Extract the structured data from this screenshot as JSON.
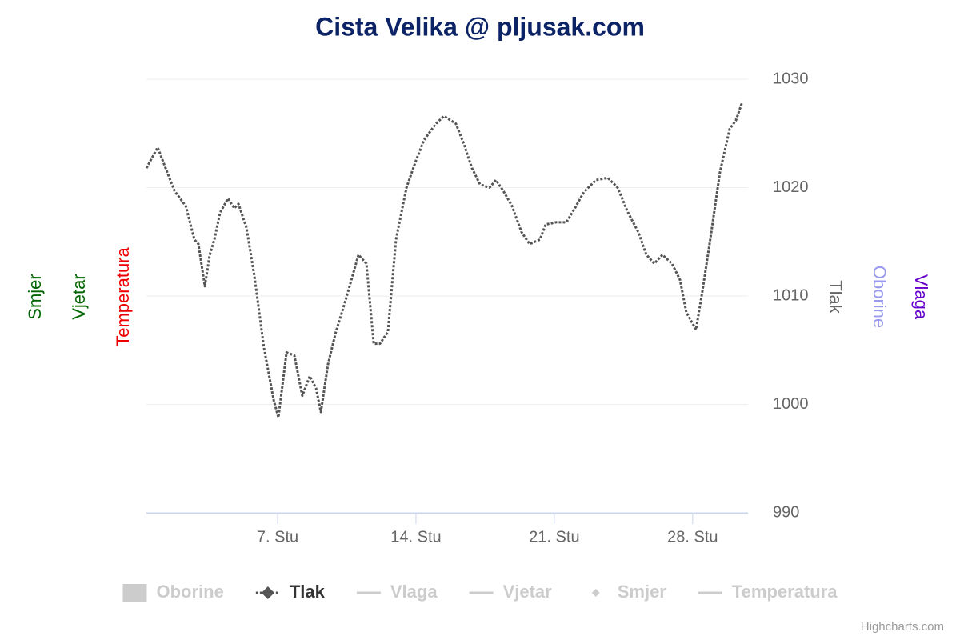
{
  "chart_data": {
    "type": "line",
    "title": "Cista Velika @ pljusak.com",
    "xlim": [
      0.36,
      30.8
    ],
    "xticks": [
      {
        "value": 7,
        "label": "7. Stu"
      },
      {
        "value": 14,
        "label": "14. Stu"
      },
      {
        "value": 21,
        "label": "21. Stu"
      },
      {
        "value": 28,
        "label": "28. Stu"
      }
    ],
    "ylim": [
      990,
      1030
    ],
    "yticks": [
      990,
      1000,
      1010,
      1020,
      1030
    ],
    "grid": true,
    "left_axis_titles": [
      {
        "text": "Smjer",
        "color": "#006400"
      },
      {
        "text": "Vjetar",
        "color": "#006400"
      },
      {
        "text": "Temperatura",
        "color": "#ee0000"
      }
    ],
    "right_axis_titles": [
      {
        "text": "Tlak",
        "color": "#666666"
      },
      {
        "text": "Oborine",
        "color": "#9999ee"
      },
      {
        "text": "Vlaga",
        "color": "#6600cc"
      }
    ],
    "series": [
      {
        "name": "Oborine",
        "visible": false,
        "symbol": "rect"
      },
      {
        "name": "Tlak",
        "visible": true,
        "symbol": "line-diamond",
        "color": "#555555",
        "x": [
          0.36,
          0.93,
          1.33,
          1.78,
          2.35,
          2.79,
          2.99,
          3.32,
          3.56,
          3.8,
          4.09,
          4.49,
          4.81,
          5.02,
          5.42,
          5.83,
          6.31,
          6.8,
          7.04,
          7.45,
          7.85,
          8.25,
          8.62,
          8.94,
          9.19,
          9.55,
          9.95,
          10.44,
          11.09,
          11.49,
          11.86,
          12.18,
          12.58,
          12.99,
          13.52,
          14.0,
          14.41,
          15.01,
          15.42,
          16.02,
          16.43,
          16.83,
          17.24,
          17.72,
          18.05,
          18.45,
          18.86,
          19.34,
          19.75,
          20.27,
          20.56,
          21.08,
          21.61,
          22.01,
          22.5,
          23.11,
          23.71,
          24.2,
          24.73,
          25.25,
          25.66,
          26.06,
          26.47,
          26.95,
          27.36,
          27.68,
          28.17,
          28.49,
          28.89,
          29.38,
          29.87,
          30.19,
          30.51
        ],
        "values": [
          1021.8,
          1023.7,
          1021.8,
          1019.7,
          1018.3,
          1015.2,
          1014.8,
          1010.9,
          1013.8,
          1015.2,
          1017.7,
          1019.0,
          1018.1,
          1018.5,
          1016.3,
          1011.8,
          1005.2,
          1000.4,
          998.8,
          1004.8,
          1004.5,
          1000.8,
          1002.6,
          1001.5,
          999.3,
          1003.7,
          1006.7,
          1009.6,
          1013.8,
          1013.0,
          1005.6,
          1005.6,
          1006.7,
          1015.2,
          1020.0,
          1022.5,
          1024.4,
          1025.9,
          1026.6,
          1025.9,
          1024.0,
          1021.8,
          1020.3,
          1020.0,
          1020.7,
          1019.6,
          1018.3,
          1015.9,
          1014.8,
          1015.2,
          1016.6,
          1016.8,
          1016.8,
          1018.0,
          1019.6,
          1020.7,
          1020.9,
          1020.0,
          1017.7,
          1015.9,
          1013.8,
          1013.0,
          1013.8,
          1013.0,
          1011.5,
          1008.5,
          1006.9,
          1010.4,
          1015.2,
          1021.4,
          1025.4,
          1026.2,
          1027.9
        ]
      },
      {
        "name": "Vlaga",
        "visible": false,
        "symbol": "line"
      },
      {
        "name": "Vjetar",
        "visible": false,
        "symbol": "line"
      },
      {
        "name": "Smjer",
        "visible": false,
        "symbol": "diamond"
      },
      {
        "name": "Temperatura",
        "visible": false,
        "symbol": "line"
      }
    ],
    "credits": "Highcharts.com"
  }
}
